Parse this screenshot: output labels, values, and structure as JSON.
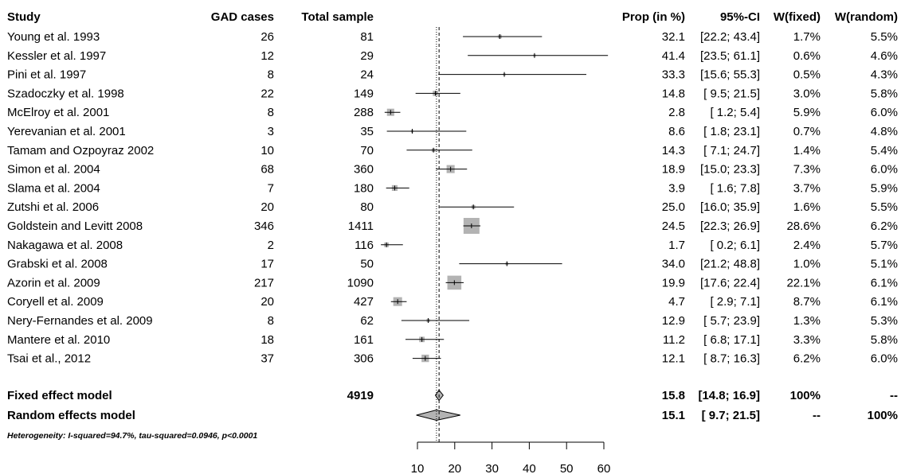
{
  "chart_data": {
    "type": "forest",
    "columns": {
      "study": "Study",
      "cases": "GAD cases",
      "total": "Total sample",
      "prop": "Prop (in %)",
      "ci": "95%-CI",
      "wfixed": "W(fixed)",
      "wrandom": "W(random)"
    },
    "studies": [
      {
        "name": "Young et al. 1993",
        "cases": "26",
        "total": "81",
        "prop_text": "32.1",
        "ci_text": "[22.2; 43.4]",
        "wfixed": "1.7%",
        "wrandom": "5.5%",
        "est": 32.1,
        "lo": 22.2,
        "hi": 43.4,
        "weight": 1.7
      },
      {
        "name": "Kessler et al. 1997",
        "cases": "12",
        "total": "29",
        "prop_text": "41.4",
        "ci_text": "[23.5; 61.1]",
        "wfixed": "0.6%",
        "wrandom": "4.6%",
        "est": 41.4,
        "lo": 23.5,
        "hi": 61.1,
        "weight": 0.6
      },
      {
        "name": "Pini et al. 1997",
        "cases": "8",
        "total": "24",
        "prop_text": "33.3",
        "ci_text": "[15.6; 55.3]",
        "wfixed": "0.5%",
        "wrandom": "4.3%",
        "est": 33.3,
        "lo": 15.6,
        "hi": 55.3,
        "weight": 0.5
      },
      {
        "name": "Szadoczky et al. 1998",
        "cases": "22",
        "total": "149",
        "prop_text": "14.8",
        "ci_text": "[ 9.5; 21.5]",
        "wfixed": "3.0%",
        "wrandom": "5.8%",
        "est": 14.8,
        "lo": 9.5,
        "hi": 21.5,
        "weight": 3.0
      },
      {
        "name": "McElroy et al. 2001",
        "cases": "8",
        "total": "288",
        "prop_text": "2.8",
        "ci_text": "[ 1.2; 5.4]",
        "wfixed": "5.9%",
        "wrandom": "6.0%",
        "est": 2.8,
        "lo": 1.2,
        "hi": 5.4,
        "weight": 5.9
      },
      {
        "name": "Yerevanian et al. 2001",
        "cases": "3",
        "total": "35",
        "prop_text": "8.6",
        "ci_text": "[ 1.8; 23.1]",
        "wfixed": "0.7%",
        "wrandom": "4.8%",
        "est": 8.6,
        "lo": 1.8,
        "hi": 23.1,
        "weight": 0.7
      },
      {
        "name": "Tamam and Ozpoyraz 2002",
        "cases": "10",
        "total": "70",
        "prop_text": "14.3",
        "ci_text": "[ 7.1; 24.7]",
        "wfixed": "1.4%",
        "wrandom": "5.4%",
        "est": 14.3,
        "lo": 7.1,
        "hi": 24.7,
        "weight": 1.4
      },
      {
        "name": "Simon et al. 2004",
        "cases": "68",
        "total": "360",
        "prop_text": "18.9",
        "ci_text": "[15.0; 23.3]",
        "wfixed": "7.3%",
        "wrandom": "6.0%",
        "est": 18.9,
        "lo": 15.0,
        "hi": 23.3,
        "weight": 7.3
      },
      {
        "name": "Slama et al. 2004",
        "cases": "7",
        "total": "180",
        "prop_text": "3.9",
        "ci_text": "[ 1.6; 7.8]",
        "wfixed": "3.7%",
        "wrandom": "5.9%",
        "est": 3.9,
        "lo": 1.6,
        "hi": 7.8,
        "weight": 3.7
      },
      {
        "name": "Zutshi et al. 2006",
        "cases": "20",
        "total": "80",
        "prop_text": "25.0",
        "ci_text": "[16.0; 35.9]",
        "wfixed": "1.6%",
        "wrandom": "5.5%",
        "est": 25.0,
        "lo": 16.0,
        "hi": 35.9,
        "weight": 1.6
      },
      {
        "name": "Goldstein and Levitt 2008",
        "cases": "346",
        "total": "1411",
        "prop_text": "24.5",
        "ci_text": "[22.3; 26.9]",
        "wfixed": "28.6%",
        "wrandom": "6.2%",
        "est": 24.5,
        "lo": 22.3,
        "hi": 26.9,
        "weight": 28.6
      },
      {
        "name": "Nakagawa et al. 2008",
        "cases": "2",
        "total": "116",
        "prop_text": "1.7",
        "ci_text": "[ 0.2; 6.1]",
        "wfixed": "2.4%",
        "wrandom": "5.7%",
        "est": 1.7,
        "lo": 0.2,
        "hi": 6.1,
        "weight": 2.4
      },
      {
        "name": "Grabski et al. 2008",
        "cases": "17",
        "total": "50",
        "prop_text": "34.0",
        "ci_text": "[21.2; 48.8]",
        "wfixed": "1.0%",
        "wrandom": "5.1%",
        "est": 34.0,
        "lo": 21.2,
        "hi": 48.8,
        "weight": 1.0
      },
      {
        "name": "Azorin et al. 2009",
        "cases": "217",
        "total": "1090",
        "prop_text": "19.9",
        "ci_text": "[17.6; 22.4]",
        "wfixed": "22.1%",
        "wrandom": "6.1%",
        "est": 19.9,
        "lo": 17.6,
        "hi": 22.4,
        "weight": 22.1
      },
      {
        "name": "Coryell et al. 2009",
        "cases": "20",
        "total": "427",
        "prop_text": "4.7",
        "ci_text": "[ 2.9; 7.1]",
        "wfixed": "8.7%",
        "wrandom": "6.1%",
        "est": 4.7,
        "lo": 2.9,
        "hi": 7.1,
        "weight": 8.7
      },
      {
        "name": "Nery-Fernandes et al. 2009",
        "cases": "8",
        "total": "62",
        "prop_text": "12.9",
        "ci_text": "[ 5.7; 23.9]",
        "wfixed": "1.3%",
        "wrandom": "5.3%",
        "est": 12.9,
        "lo": 5.7,
        "hi": 23.9,
        "weight": 1.3
      },
      {
        "name": "Mantere et al. 2010",
        "cases": "18",
        "total": "161",
        "prop_text": "11.2",
        "ci_text": "[ 6.8; 17.1]",
        "wfixed": "3.3%",
        "wrandom": "5.8%",
        "est": 11.2,
        "lo": 6.8,
        "hi": 17.1,
        "weight": 3.3
      },
      {
        "name": "Tsai et al., 2012",
        "cases": "37",
        "total": "306",
        "prop_text": "12.1",
        "ci_text": "[ 8.7; 16.3]",
        "wfixed": "6.2%",
        "wrandom": "6.0%",
        "est": 12.1,
        "lo": 8.7,
        "hi": 16.3,
        "weight": 6.2
      }
    ],
    "summaries": [
      {
        "name": "Fixed effect model",
        "total": "4919",
        "prop_text": "15.8",
        "ci_text": "[14.8; 16.9]",
        "wfixed": "100%",
        "wrandom": "--",
        "est": 15.8,
        "lo": 14.8,
        "hi": 16.9
      },
      {
        "name": "Random effects model",
        "total": "",
        "prop_text": "15.1",
        "ci_text": "[ 9.7; 21.5]",
        "wfixed": "--",
        "wrandom": "100%",
        "est": 15.1,
        "lo": 9.7,
        "hi": 21.5
      }
    ],
    "heterogeneity": "Heterogeneity: I-squared=94.7%, tau-squared=0.0946, p<0.0001",
    "x_ticks": [
      10,
      20,
      30,
      40,
      50,
      60
    ],
    "xlim": [
      10,
      60
    ],
    "reference_lines": {
      "fixed": 15.8,
      "random": 15.1
    },
    "colors": {
      "box": "#b3b3b3",
      "diamond": "#b3b3b3",
      "line": "#000000"
    }
  }
}
